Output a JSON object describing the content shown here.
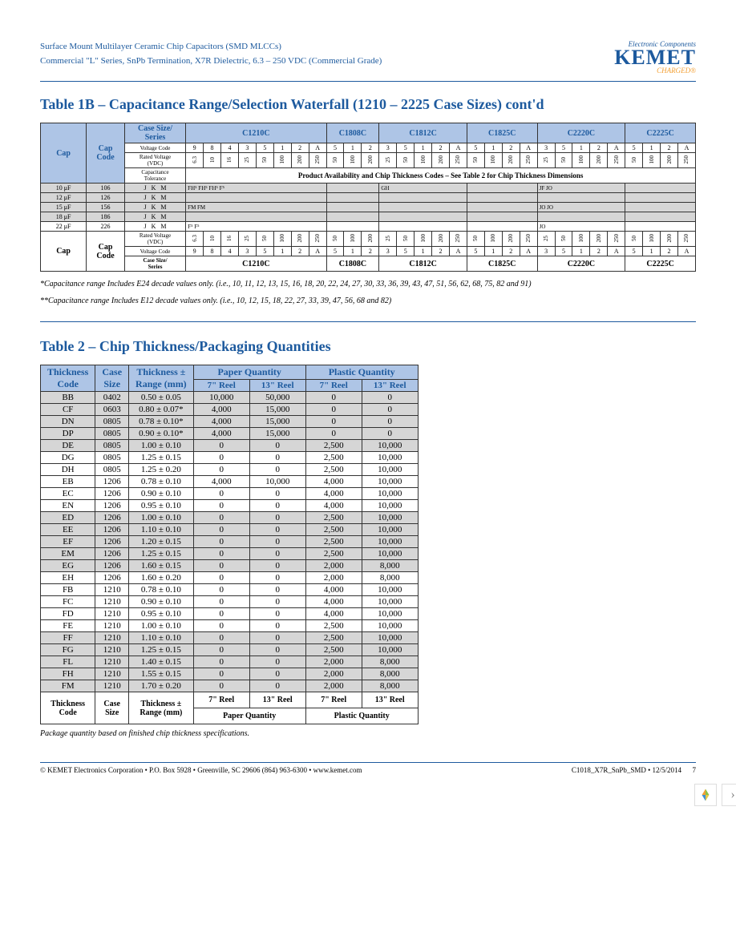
{
  "header": {
    "line1": "Surface Mount Multilayer Ceramic Chip Capacitors (SMD MLCCs)",
    "line2": "Commercial \"L\" Series, SnPb Termination, X7R Dielectric, 6.3 – 250 VDC (Commercial Grade)",
    "logo_ec": "Electronic Components",
    "logo_brand": "KEMET",
    "logo_charged": "CHARGED®"
  },
  "table1b": {
    "title": "Table 1B – Capacitance Range/Selection Waterfall (1210 – 2225 Case Sizes) cont'd",
    "cap_h": "Cap",
    "capcode_h": "Cap\nCode",
    "case_series": "Case Size/\nSeries",
    "voltage_code": "Voltage Code",
    "rated_voltage": "Rated Voltage\n(VDC)",
    "cap_tol": "Capacitance\nTolerance",
    "avail_note": "Product Availability and Chip Thickness Codes – See Table 2 for Chip Thickness Dimensions",
    "series": [
      "C1210C",
      "C1808C",
      "C1812C",
      "C1825C",
      "C2220C",
      "C2225C"
    ],
    "vcodes_c1210": [
      "9",
      "8",
      "4",
      "3",
      "5",
      "1",
      "2",
      "A"
    ],
    "vcodes_c1808": [
      "5",
      "1",
      "2"
    ],
    "vcodes_c1812": [
      "3",
      "5",
      "1",
      "2",
      "A"
    ],
    "vcodes_c1825": [
      "5",
      "1",
      "2",
      "A"
    ],
    "vcodes_c2220": [
      "3",
      "5",
      "1",
      "2",
      "A"
    ],
    "vcodes_c2225": [
      "5",
      "1",
      "2",
      "A"
    ],
    "rv_c1210": [
      "6.3",
      "10",
      "16",
      "25",
      "50",
      "100",
      "200",
      "250"
    ],
    "rv_c1808": [
      "50",
      "100",
      "200"
    ],
    "rv_c1812": [
      "25",
      "50",
      "100",
      "200",
      "250"
    ],
    "rv_c1825": [
      "50",
      "100",
      "200",
      "250"
    ],
    "rv_c2220": [
      "25",
      "50",
      "100",
      "200",
      "250"
    ],
    "rv_c2225": [
      "50",
      "100",
      "200",
      "250"
    ],
    "rows": [
      {
        "cap": "10 μF",
        "code": "106",
        "tol": [
          "J",
          "K",
          "M"
        ],
        "c1210": "FH⁵ FH⁵ FH⁵ F⁵",
        "c1812": "GH",
        "c2220": "JF JO"
      },
      {
        "cap": "12 μF",
        "code": "126",
        "tol": [
          "J",
          "K",
          "M"
        ]
      },
      {
        "cap": "15 μF",
        "code": "156",
        "tol": [
          "J",
          "K",
          "M"
        ],
        "c1210": "FM FM",
        "c2220": "JO JO"
      },
      {
        "cap": "18 μF",
        "code": "186",
        "tol": [
          "J",
          "K",
          "M"
        ]
      },
      {
        "cap": "22 μF",
        "code": "226",
        "tol": [
          "J",
          "K",
          "M"
        ],
        "c1210": "F⁵ F⁵",
        "c2220": "JO"
      }
    ],
    "footnote1": "*Capacitance range Includes E24 decade values only. (i.e., 10, 11, 12, 13, 15, 16, 18, 20, 22, 24, 27, 30, 33, 36, 39, 43, 47, 51, 56, 62, 68, 75, 82 and 91)",
    "footnote2": "**Capacitance range Includes E12 decade values only. (i.e., 10, 12, 15, 18, 22, 27, 33, 39, 47, 56, 68 and 82)"
  },
  "table2": {
    "title": "Table 2 – Chip Thickness/Packaging Quantities",
    "headers": {
      "thickcode": "Thickness\nCode",
      "casesize": "Case\nSize",
      "thickrange": "Thickness ±\nRange (mm)",
      "paperq": "Paper Quantity",
      "plasticq": "Plastic Quantity",
      "r7": "7\" Reel",
      "r13": "13\" Reel"
    },
    "rows": [
      [
        "BB",
        "0402",
        "0.50 ± 0.05",
        "10,000",
        "50,000",
        "0",
        "0"
      ],
      [
        "CF",
        "0603",
        "0.80 ± 0.07*",
        "4,000",
        "15,000",
        "0",
        "0"
      ],
      [
        "DN",
        "0805",
        "0.78 ± 0.10*",
        "4,000",
        "15,000",
        "0",
        "0"
      ],
      [
        "DP",
        "0805",
        "0.90 ± 0.10*",
        "4,000",
        "15,000",
        "0",
        "0"
      ],
      [
        "DE",
        "0805",
        "1.00 ± 0.10",
        "0",
        "0",
        "2,500",
        "10,000"
      ],
      [
        "DG",
        "0805",
        "1.25 ± 0.15",
        "0",
        "0",
        "2,500",
        "10,000"
      ],
      [
        "DH",
        "0805",
        "1.25 ± 0.20",
        "0",
        "0",
        "2,500",
        "10,000"
      ],
      [
        "EB",
        "1206",
        "0.78 ± 0.10",
        "4,000",
        "10,000",
        "4,000",
        "10,000"
      ],
      [
        "EC",
        "1206",
        "0.90 ± 0.10",
        "0",
        "0",
        "4,000",
        "10,000"
      ],
      [
        "EN",
        "1206",
        "0.95 ± 0.10",
        "0",
        "0",
        "4,000",
        "10,000"
      ],
      [
        "ED",
        "1206",
        "1.00 ± 0.10",
        "0",
        "0",
        "2,500",
        "10,000"
      ],
      [
        "EE",
        "1206",
        "1.10 ± 0.10",
        "0",
        "0",
        "2,500",
        "10,000"
      ],
      [
        "EF",
        "1206",
        "1.20 ± 0.15",
        "0",
        "0",
        "2,500",
        "10,000"
      ],
      [
        "EM",
        "1206",
        "1.25 ± 0.15",
        "0",
        "0",
        "2,500",
        "10,000"
      ],
      [
        "EG",
        "1206",
        "1.60 ± 0.15",
        "0",
        "0",
        "2,000",
        "8,000"
      ],
      [
        "EH",
        "1206",
        "1.60 ± 0.20",
        "0",
        "0",
        "2,000",
        "8,000"
      ],
      [
        "FB",
        "1210",
        "0.78 ± 0.10",
        "0",
        "0",
        "4,000",
        "10,000"
      ],
      [
        "FC",
        "1210",
        "0.90 ± 0.10",
        "0",
        "0",
        "4,000",
        "10,000"
      ],
      [
        "FD",
        "1210",
        "0.95 ± 0.10",
        "0",
        "0",
        "4,000",
        "10,000"
      ],
      [
        "FE",
        "1210",
        "1.00 ± 0.10",
        "0",
        "0",
        "2,500",
        "10,000"
      ],
      [
        "FF",
        "1210",
        "1.10 ± 0.10",
        "0",
        "0",
        "2,500",
        "10,000"
      ],
      [
        "FG",
        "1210",
        "1.25 ± 0.15",
        "0",
        "0",
        "2,500",
        "10,000"
      ],
      [
        "FL",
        "1210",
        "1.40 ± 0.15",
        "0",
        "0",
        "2,000",
        "8,000"
      ],
      [
        "FH",
        "1210",
        "1.55 ± 0.15",
        "0",
        "0",
        "2,000",
        "8,000"
      ],
      [
        "FM",
        "1210",
        "1.70 ± 0.20",
        "0",
        "0",
        "2,000",
        "8,000"
      ]
    ],
    "bands": [
      [
        0,
        4
      ],
      [
        10,
        14
      ],
      [
        20,
        24
      ]
    ],
    "note": "Package quantity based on finished chip thickness specifications."
  },
  "footer": {
    "left": "© KEMET Electronics Corporation • P.O. Box 5928 • Greenville, SC 29606 (864) 963-6300 • www.kemet.com",
    "right": "C1018_X7R_SnPb_SMD • 12/5/2014",
    "page": "7"
  },
  "colors": {
    "blue": "#1d5a9e",
    "headerbg": "#aec5e6",
    "shade": "#d6d6d6",
    "orange": "#f3a035"
  }
}
